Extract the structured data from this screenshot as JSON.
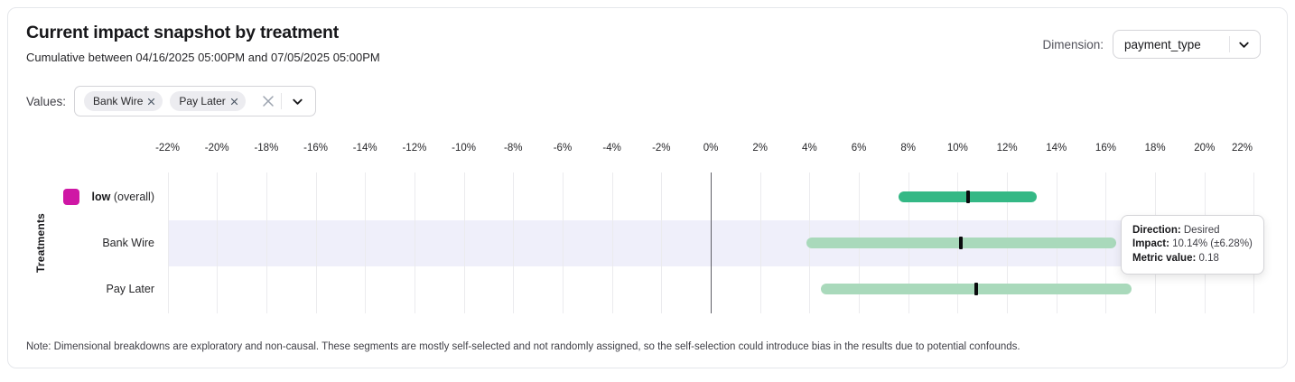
{
  "header": {
    "title": "Current impact snapshot by treatment",
    "subtitle": "Cumulative between 04/16/2025 05:00PM and 07/05/2025 05:00PM",
    "dimension_label": "Dimension:",
    "dimension_value": "payment_type"
  },
  "filters": {
    "values_label": "Values:",
    "chips": [
      {
        "label": "Bank Wire"
      },
      {
        "label": "Pay Later"
      }
    ]
  },
  "chart_data": {
    "type": "range_bar",
    "title": "Current impact snapshot by treatment",
    "ylabel": "Treatments",
    "x_axis": {
      "unit": "%",
      "tick_min": -22,
      "tick_max": 22,
      "tick_step": 2,
      "xlim": [
        -22,
        22
      ]
    },
    "grid": true,
    "zero_line": true,
    "rows": [
      {
        "label": "low",
        "label_suffix": "(overall)",
        "legend_color": "#cf17a5",
        "bar_color": "#34b885",
        "impact_pct": 10.42,
        "ci_pct": 2.8,
        "highlighted": false
      },
      {
        "label": "Bank Wire",
        "label_suffix": "",
        "legend_color": null,
        "bar_color": "#a9d9bb",
        "impact_pct": 10.14,
        "ci_pct": 6.28,
        "highlighted": true
      },
      {
        "label": "Pay Later",
        "label_suffix": "",
        "legend_color": null,
        "bar_color": "#a9d9bb",
        "impact_pct": 10.76,
        "ci_pct": 6.29,
        "highlighted": false
      }
    ]
  },
  "tooltip": {
    "rows": [
      {
        "label": "Direction:",
        "value": "Desired"
      },
      {
        "label": "Impact:",
        "value": "10.14% (±6.28%)"
      },
      {
        "label": "Metric value:",
        "value": "0.18"
      }
    ]
  },
  "note": "Note: Dimensional breakdowns are exploratory and non-causal. These segments are mostly self-selected and not randomly assigned, so the self-selection could introduce bias in the results due to potential confounds.",
  "colors": {
    "accent_magenta": "#cf17a5",
    "bar_green_dark": "#34b885",
    "bar_green_light": "#a9d9bb",
    "row_highlight": "#efeffa"
  }
}
